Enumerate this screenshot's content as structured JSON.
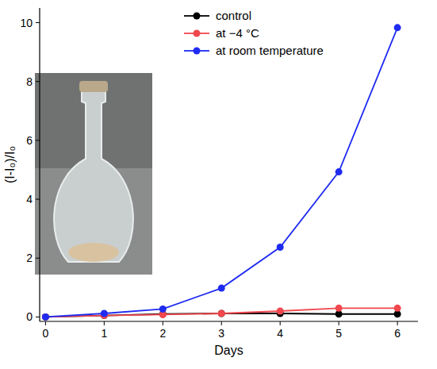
{
  "chart_data": {
    "type": "line",
    "x_label": "Days",
    "y_label": "(I-I₀)/I₀",
    "x": [
      0,
      1,
      2,
      3,
      4,
      5,
      6
    ],
    "series": [
      {
        "name": "control",
        "color": "#000000",
        "marker": "circle",
        "values": [
          0,
          0.05,
          0.1,
          0.12,
          0.12,
          0.1,
          0.1
        ]
      },
      {
        "name": "at −4 °C",
        "color": "#f0484e",
        "marker": "circle",
        "values": [
          0,
          0.05,
          0.08,
          0.12,
          0.2,
          0.3,
          0.3
        ]
      },
      {
        "name": "at room temperature",
        "color": "#1f2bf0",
        "marker": "circle",
        "values": [
          0,
          0.12,
          0.27,
          0.98,
          2.37,
          4.93,
          9.83
        ]
      }
    ],
    "xlim": [
      -0.1,
      6.35
    ],
    "ylim": [
      -0.15,
      10.5
    ],
    "xticks": [
      0,
      1,
      2,
      3,
      4,
      5,
      6
    ],
    "yticks": [
      0,
      2,
      4,
      6,
      8,
      10
    ],
    "legend": "top",
    "grid": false
  }
}
